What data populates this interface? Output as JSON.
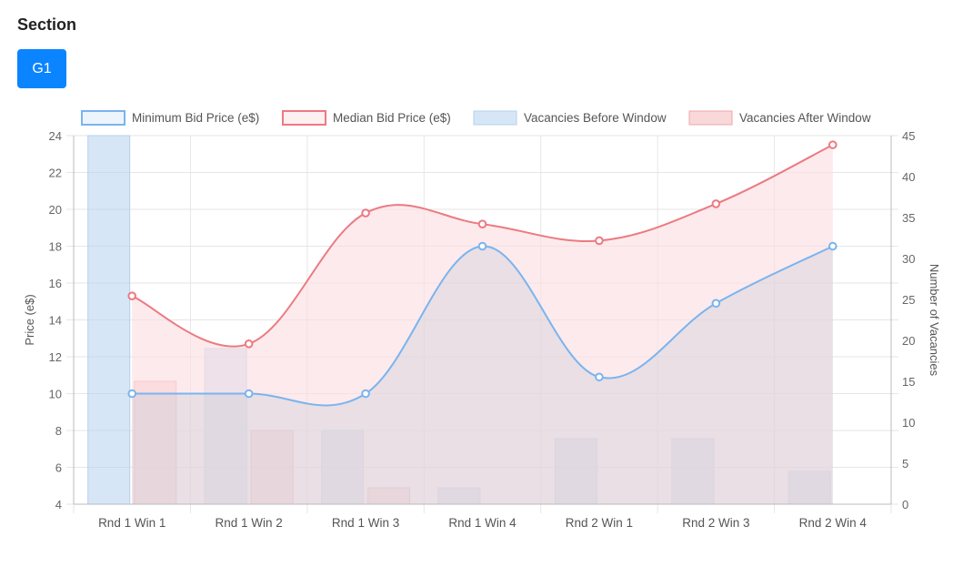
{
  "header": {
    "section_title": "Section"
  },
  "tabs": [
    {
      "label": "G1",
      "color": "#0b84ff"
    }
  ],
  "chart_data": {
    "type": "bar+line",
    "categories": [
      "Rnd 1 Win 1",
      "Rnd 1 Win 2",
      "Rnd 1 Win 3",
      "Rnd 1 Win 4",
      "Rnd 2 Win 1",
      "Rnd 2 Win 3",
      "Rnd 2 Win 4"
    ],
    "y_left": {
      "label": "Price (e$)",
      "min": 4,
      "max": 24,
      "ticks": [
        4,
        6,
        8,
        10,
        12,
        14,
        16,
        18,
        20,
        22,
        24
      ]
    },
    "y_right": {
      "label": "Number of Vacancies",
      "min": 0,
      "max": 45,
      "ticks": [
        0,
        5,
        10,
        15,
        20,
        25,
        30,
        35,
        40,
        45
      ]
    },
    "lines": [
      {
        "name": "Minimum Bid Price (e$)",
        "axis": "left",
        "color": "#79b4ef",
        "fill": "rgba(200,205,215,0.38)",
        "values": [
          10,
          10,
          10,
          18,
          10.9,
          14.9,
          18
        ]
      },
      {
        "name": "Median Bid Price (e$)",
        "axis": "left",
        "color": "#ec7a82",
        "fill": "rgba(252,222,226,0.65)",
        "values": [
          15.3,
          12.7,
          19.8,
          19.2,
          18.3,
          20.3,
          23.5
        ]
      }
    ],
    "bars": [
      {
        "name": "Vacancies Before Window",
        "axis": "right",
        "color": "rgba(181,209,238,0.55)",
        "border": "#b7d0ec",
        "values": [
          45,
          19,
          9,
          2,
          8,
          8,
          4
        ]
      },
      {
        "name": "Vacancies After Window",
        "axis": "right",
        "color": "rgba(244,190,192,0.6)",
        "border": "#f2a5a8",
        "values": [
          15,
          9,
          2,
          0,
          0,
          0,
          0
        ]
      }
    ],
    "legend_position": "top",
    "grid": true
  }
}
